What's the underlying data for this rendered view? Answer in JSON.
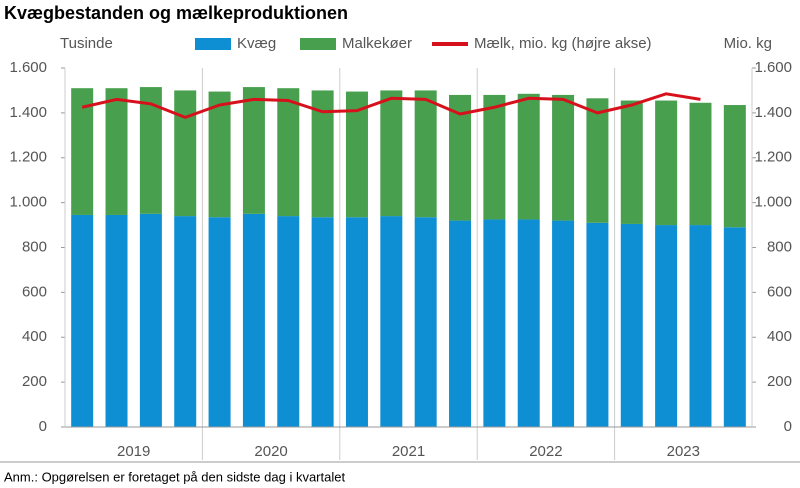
{
  "chart_data": {
    "type": "bar-line",
    "title": "Kvægbestanden og mælkeproduktionen",
    "y_label": "Tusinde",
    "y2_label": "Mio. kg",
    "note": "Anm.: Opgørelsen er foretaget på den sidste dag i kvartalet",
    "groups": [
      "2019",
      "2020",
      "2021",
      "2022",
      "2023"
    ],
    "categories": [
      null,
      null,
      null,
      null,
      null,
      null,
      null,
      null,
      null,
      null,
      null,
      null,
      null,
      null,
      null,
      null,
      null,
      null,
      null,
      null
    ],
    "series": [
      {
        "name": "Kvæg",
        "color": "#0f8fd3",
        "kind": "bar",
        "values": [
          945,
          945,
          950,
          940,
          935,
          950,
          940,
          935,
          935,
          940,
          935,
          920,
          925,
          925,
          920,
          910,
          905,
          900,
          900,
          890
        ]
      },
      {
        "name": "Malkekøer",
        "color": "#48a04f",
        "kind": "bar",
        "values": [
          565,
          565,
          565,
          560,
          560,
          565,
          570,
          565,
          560,
          560,
          565,
          560,
          555,
          560,
          560,
          555,
          550,
          555,
          545,
          545
        ]
      },
      {
        "name": "Mælk, mio. kg (højre akse)",
        "color": "#d7111b",
        "kind": "line",
        "axis": "y2",
        "values": [
          1425,
          1460,
          1440,
          1380,
          1435,
          1460,
          1455,
          1405,
          1410,
          1465,
          1460,
          1395,
          1425,
          1465,
          1460,
          1400,
          1435,
          1485,
          1460,
          null
        ]
      }
    ],
    "ylim": [
      0,
      1600
    ],
    "yticks": [
      0,
      200,
      400,
      600,
      800,
      {
        "value": 1000,
        "label": "1.000"
      },
      {
        "value": 1200,
        "label": "1.200"
      },
      {
        "value": 1400,
        "label": "1.400"
      },
      {
        "value": 1600,
        "label": "1.600"
      }
    ],
    "y2lim": [
      0,
      1600
    ],
    "y2ticks": [
      0,
      200,
      400,
      600,
      800,
      {
        "value": 1000,
        "label": "1.000"
      },
      {
        "value": 1200,
        "label": "1.200"
      },
      {
        "value": 1400,
        "label": "1.400"
      },
      {
        "value": 1600,
        "label": "1.600"
      }
    ]
  }
}
